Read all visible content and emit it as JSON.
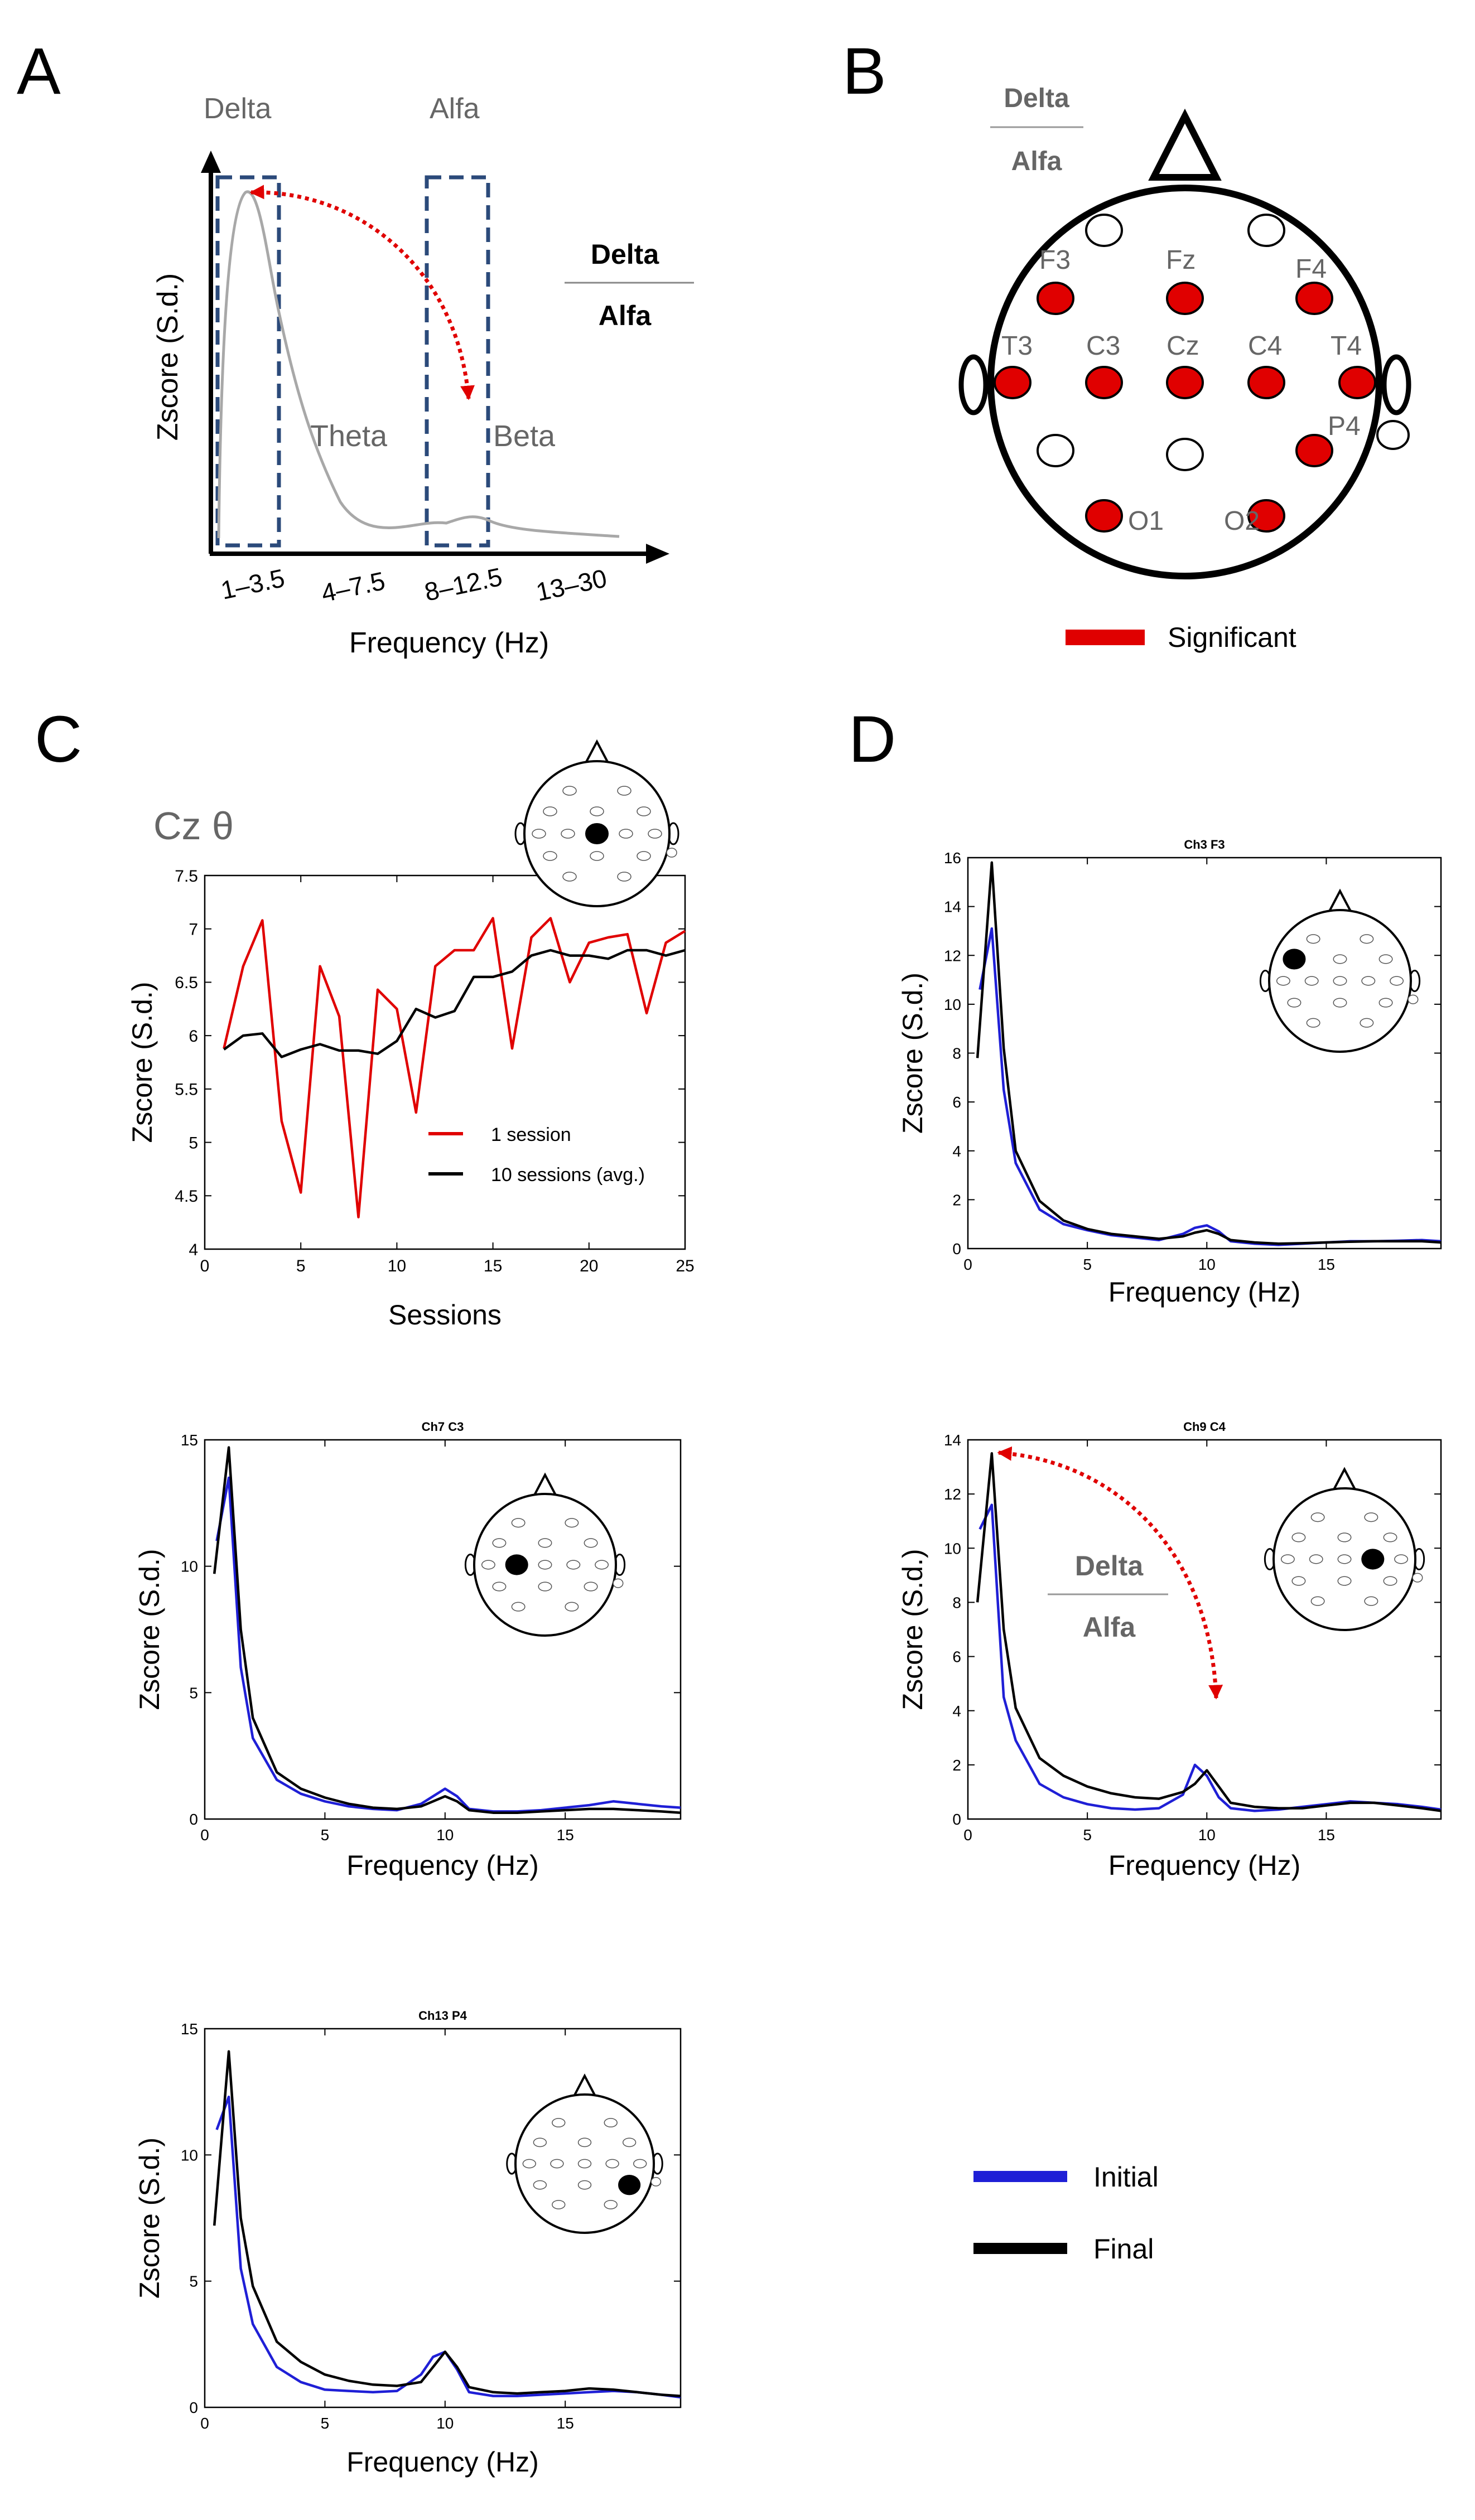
{
  "panel_labels": [
    "A",
    "B",
    "C",
    "D"
  ],
  "colors": {
    "initial": "#1f1fd6",
    "final": "#000000",
    "red": "#e00000",
    "spectrum": "#a8a8a8",
    "box": "#2b4a7a",
    "grey_text": "#666666"
  },
  "panel_a": {
    "ylabel": "Zscore (S.d.)",
    "xlabel": "Frequency (Hz)",
    "band_names": [
      "Delta",
      "Alfa",
      "Theta",
      "Beta"
    ],
    "tick_labels": [
      "1–3.5",
      "4–7.5",
      "8–12.5",
      "13–30"
    ],
    "ratio_num": "Delta",
    "ratio_den": "Alfa"
  },
  "panel_b": {
    "ratio_num": "Delta",
    "ratio_den": "Alfa",
    "electrodes": [
      {
        "label": "",
        "significant": false
      },
      {
        "label": "",
        "significant": false
      },
      {
        "label": "F3",
        "significant": true
      },
      {
        "label": "Fz",
        "significant": true
      },
      {
        "label": "F4",
        "significant": true
      },
      {
        "label": "T3",
        "significant": true
      },
      {
        "label": "C3",
        "significant": true
      },
      {
        "label": "Cz",
        "significant": true
      },
      {
        "label": "C4",
        "significant": true
      },
      {
        "label": "T4",
        "significant": true
      },
      {
        "label": "",
        "significant": false
      },
      {
        "label": "",
        "significant": false
      },
      {
        "label": "P4",
        "significant": true
      },
      {
        "label": "O1",
        "significant": true
      },
      {
        "label": "O2",
        "significant": true
      }
    ],
    "legend_label": "Significant"
  },
  "panel_c": {
    "title": "Cz θ",
    "xlabel": "Sessions",
    "ylabel": "Zscore (S.d.)",
    "legend": [
      "1 session",
      "10 sessions (avg.)"
    ]
  },
  "panel_d": {
    "ratio_num": "Delta",
    "ratio_den": "Alfa"
  },
  "bottom_legend": [
    "Initial",
    "Final"
  ],
  "chart_data": [
    {
      "id": "cz-theta",
      "type": "line",
      "title": "Cz θ",
      "xlabel": "Sessions",
      "ylabel": "Zscore (S.d.)",
      "xlim": [
        0,
        25
      ],
      "ylim": [
        4,
        7.5
      ],
      "xticks": [
        0,
        5,
        10,
        15,
        20,
        25
      ],
      "yticks": [
        4,
        4.5,
        5,
        5.5,
        6,
        6.5,
        7,
        7.5
      ],
      "ytick_labels": [
        "4",
        "4.5",
        "5",
        "5.5",
        "6",
        "6.5",
        "7",
        "7.5"
      ],
      "series": [
        {
          "name": "1 session",
          "color": "#e00000",
          "x": [
            1,
            2,
            3,
            4,
            5,
            6,
            7,
            8,
            9,
            10,
            11,
            12,
            13,
            14,
            15,
            16,
            17,
            18,
            19,
            20,
            21,
            22,
            23,
            24,
            25
          ],
          "y": [
            5.88,
            6.65,
            7.08,
            5.2,
            4.53,
            6.65,
            6.18,
            4.3,
            6.43,
            6.25,
            5.28,
            6.65,
            6.8,
            6.8,
            7.1,
            5.88,
            6.92,
            7.1,
            6.5,
            6.87,
            6.92,
            6.95,
            6.21,
            6.87,
            6.98
          ]
        },
        {
          "name": "10 sessions (avg.)",
          "color": "#000000",
          "x": [
            1,
            2,
            3,
            4,
            5,
            6,
            7,
            8,
            9,
            10,
            11,
            12,
            13,
            14,
            15,
            16,
            17,
            18,
            19,
            20,
            21,
            22,
            23,
            24,
            25
          ],
          "y": [
            5.87,
            6.0,
            6.02,
            5.8,
            5.87,
            5.92,
            5.86,
            5.86,
            5.83,
            5.95,
            6.25,
            6.17,
            6.23,
            6.55,
            6.55,
            6.6,
            6.75,
            6.8,
            6.75,
            6.75,
            6.72,
            6.8,
            6.8,
            6.75,
            6.8
          ]
        }
      ]
    },
    {
      "id": "ch3-f3",
      "type": "line",
      "title": "Ch3 F3",
      "xlabel": "Frequency (Hz)",
      "ylabel": "Zscore (S.d.)",
      "xlim": [
        0,
        19.8
      ],
      "ylim": [
        0,
        16
      ],
      "xticks": [
        0,
        5,
        10,
        15
      ],
      "yticks": [
        0,
        2,
        4,
        6,
        8,
        10,
        12,
        14,
        16
      ],
      "highlight": "F3",
      "series": [
        {
          "name": "Initial",
          "color": "#1f1fd6",
          "x": [
            0.5,
            1,
            1.5,
            2,
            3,
            4,
            5,
            6,
            7,
            8,
            9,
            9.5,
            10,
            10.5,
            11,
            12,
            13,
            14,
            15,
            16,
            17,
            18,
            19,
            19.8
          ],
          "y": [
            10.6,
            13.1,
            6.5,
            3.5,
            1.6,
            1.0,
            0.75,
            0.55,
            0.45,
            0.35,
            0.6,
            0.85,
            0.95,
            0.7,
            0.3,
            0.2,
            0.15,
            0.2,
            0.25,
            0.3,
            0.3,
            0.32,
            0.35,
            0.3
          ]
        },
        {
          "name": "Final",
          "color": "#000000",
          "x": [
            0.4,
            1,
            1.5,
            2,
            3,
            4,
            5,
            6,
            7,
            8,
            9,
            9.5,
            10,
            10.5,
            11,
            12,
            13,
            14,
            15,
            16,
            17,
            18,
            19,
            19.8
          ],
          "y": [
            7.8,
            15.8,
            8.2,
            4.0,
            1.95,
            1.15,
            0.8,
            0.6,
            0.5,
            0.4,
            0.5,
            0.65,
            0.75,
            0.6,
            0.35,
            0.25,
            0.2,
            0.22,
            0.25,
            0.28,
            0.3,
            0.3,
            0.3,
            0.25
          ]
        }
      ]
    },
    {
      "id": "ch7-c3",
      "type": "line",
      "title": "Ch7 C3",
      "xlabel": "Frequency (Hz)",
      "ylabel": "Zscore (S.d.)",
      "xlim": [
        0,
        19.8
      ],
      "ylim": [
        0,
        15
      ],
      "xticks": [
        0,
        5,
        10,
        15
      ],
      "yticks": [
        0,
        5,
        10,
        15
      ],
      "highlight": "C3",
      "series": [
        {
          "name": "Initial",
          "color": "#1f1fd6",
          "x": [
            0.5,
            1,
            1.5,
            2,
            3,
            4,
            5,
            6,
            7,
            8,
            9,
            9.5,
            10,
            10.5,
            11,
            12,
            13,
            14,
            15,
            16,
            17,
            18,
            19,
            19.8
          ],
          "y": [
            11.0,
            13.5,
            6.0,
            3.2,
            1.55,
            1.0,
            0.7,
            0.5,
            0.4,
            0.35,
            0.6,
            0.9,
            1.2,
            0.9,
            0.4,
            0.3,
            0.3,
            0.35,
            0.45,
            0.55,
            0.7,
            0.6,
            0.5,
            0.45
          ]
        },
        {
          "name": "Final",
          "color": "#000000",
          "x": [
            0.4,
            1,
            1.5,
            2,
            3,
            4,
            5,
            6,
            7,
            8,
            9,
            9.5,
            10,
            10.5,
            11,
            12,
            13,
            14,
            15,
            16,
            17,
            18,
            19,
            19.8
          ],
          "y": [
            9.7,
            14.7,
            7.5,
            4.0,
            1.85,
            1.2,
            0.85,
            0.6,
            0.45,
            0.4,
            0.5,
            0.7,
            0.9,
            0.7,
            0.35,
            0.25,
            0.25,
            0.3,
            0.35,
            0.4,
            0.4,
            0.35,
            0.3,
            0.25
          ]
        }
      ]
    },
    {
      "id": "ch9-c4",
      "type": "line",
      "title": "Ch9 C4",
      "xlabel": "Frequency (Hz)",
      "ylabel": "Zscore (S.d.)",
      "xlim": [
        0,
        19.8
      ],
      "ylim": [
        0,
        14
      ],
      "xticks": [
        0,
        5,
        10,
        15
      ],
      "yticks": [
        0,
        2,
        4,
        6,
        8,
        10,
        12,
        14
      ],
      "highlight": "C4",
      "series": [
        {
          "name": "Initial",
          "color": "#1f1fd6",
          "x": [
            0.5,
            1,
            1.5,
            2,
            3,
            4,
            5,
            6,
            7,
            8,
            9,
            9.5,
            10,
            10.5,
            11,
            12,
            13,
            14,
            15,
            16,
            17,
            18,
            19,
            19.8
          ],
          "y": [
            10.7,
            11.6,
            4.5,
            2.9,
            1.3,
            0.8,
            0.55,
            0.4,
            0.35,
            0.4,
            0.9,
            2.0,
            1.6,
            0.8,
            0.4,
            0.3,
            0.35,
            0.45,
            0.55,
            0.65,
            0.6,
            0.55,
            0.45,
            0.35
          ]
        },
        {
          "name": "Final",
          "color": "#000000",
          "x": [
            0.4,
            1,
            1.5,
            2,
            3,
            4,
            5,
            6,
            7,
            8,
            9,
            9.5,
            10,
            10.5,
            11,
            12,
            13,
            14,
            15,
            16,
            17,
            18,
            19,
            19.8
          ],
          "y": [
            8.0,
            13.5,
            7.0,
            4.1,
            2.25,
            1.6,
            1.2,
            0.95,
            0.8,
            0.75,
            1.0,
            1.3,
            1.8,
            1.2,
            0.6,
            0.45,
            0.4,
            0.4,
            0.5,
            0.6,
            0.6,
            0.5,
            0.4,
            0.3
          ]
        }
      ]
    },
    {
      "id": "ch13-p4",
      "type": "line",
      "title": "Ch13 P4",
      "xlabel": "Frequency (Hz)",
      "ylabel": "Zscore (S.d.)",
      "xlim": [
        0,
        19.8
      ],
      "ylim": [
        0,
        15
      ],
      "xticks": [
        0,
        5,
        10,
        15
      ],
      "yticks": [
        0,
        5,
        10,
        15
      ],
      "highlight": "P4",
      "series": [
        {
          "name": "Initial",
          "color": "#1f1fd6",
          "x": [
            0.5,
            1,
            1.5,
            2,
            3,
            4,
            5,
            6,
            7,
            8,
            9,
            9.5,
            10,
            10.5,
            11,
            12,
            13,
            14,
            15,
            16,
            17,
            18,
            19,
            19.8
          ],
          "y": [
            11.0,
            12.3,
            5.5,
            3.3,
            1.6,
            1.0,
            0.7,
            0.65,
            0.6,
            0.65,
            1.3,
            2.0,
            2.2,
            1.5,
            0.6,
            0.45,
            0.45,
            0.5,
            0.55,
            0.6,
            0.65,
            0.6,
            0.5,
            0.4
          ]
        },
        {
          "name": "Final",
          "color": "#000000",
          "x": [
            0.4,
            1,
            1.5,
            2,
            3,
            4,
            5,
            6,
            7,
            8,
            9,
            9.5,
            10,
            10.5,
            11,
            12,
            13,
            14,
            15,
            16,
            17,
            18,
            19,
            19.8
          ],
          "y": [
            7.2,
            14.1,
            7.5,
            4.8,
            2.6,
            1.8,
            1.3,
            1.05,
            0.9,
            0.85,
            1.0,
            1.6,
            2.2,
            1.6,
            0.8,
            0.6,
            0.55,
            0.6,
            0.65,
            0.75,
            0.7,
            0.6,
            0.5,
            0.45
          ]
        }
      ]
    }
  ]
}
